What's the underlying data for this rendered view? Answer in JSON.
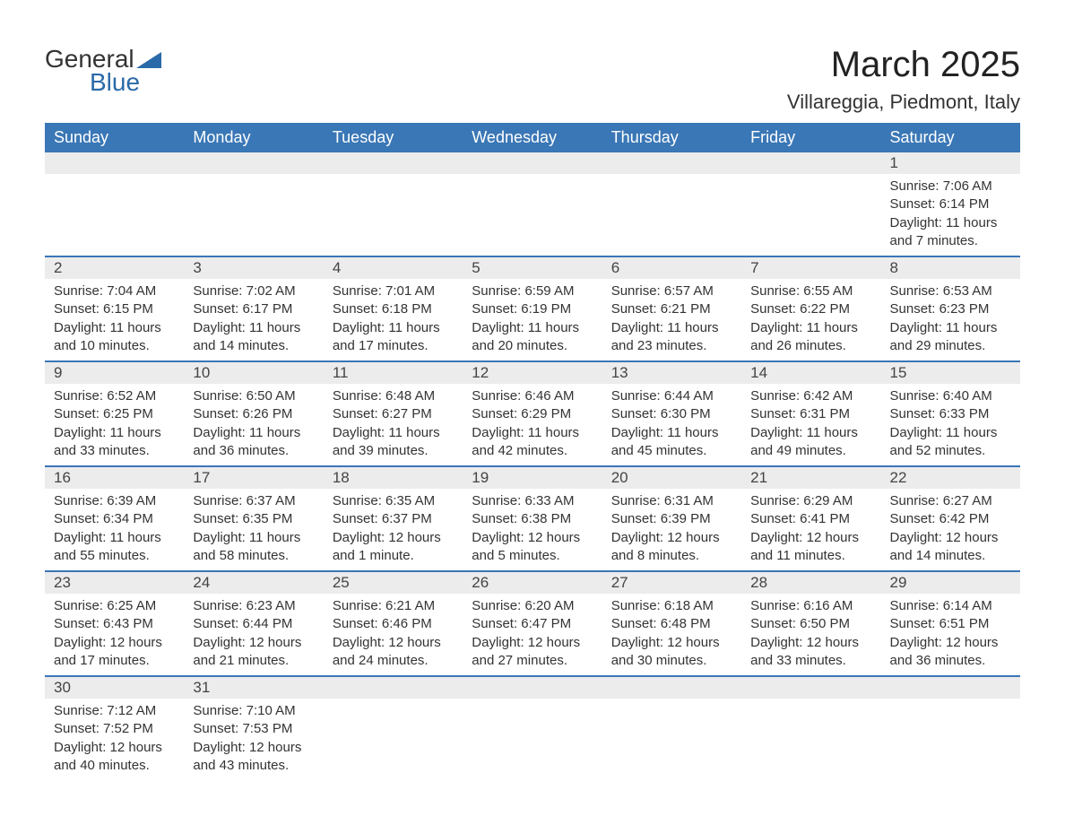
{
  "logo": {
    "text1": "General",
    "text2": "Blue",
    "brand_color": "#2b6aa8"
  },
  "header": {
    "month_title": "March 2025",
    "location": "Villareggia, Piedmont, Italy"
  },
  "calendar": {
    "type": "calendar-table",
    "header_bg": "#3a77b6",
    "header_fg": "#ffffff",
    "row_border_color": "#3a77b6",
    "daynum_bg": "#ececec",
    "text_color": "#333333",
    "font_family": "Arial",
    "day_headers": [
      "Sunday",
      "Monday",
      "Tuesday",
      "Wednesday",
      "Thursday",
      "Friday",
      "Saturday"
    ],
    "weeks": [
      [
        {
          "day": "",
          "sunrise": "",
          "sunset": "",
          "daylight": ""
        },
        {
          "day": "",
          "sunrise": "",
          "sunset": "",
          "daylight": ""
        },
        {
          "day": "",
          "sunrise": "",
          "sunset": "",
          "daylight": ""
        },
        {
          "day": "",
          "sunrise": "",
          "sunset": "",
          "daylight": ""
        },
        {
          "day": "",
          "sunrise": "",
          "sunset": "",
          "daylight": ""
        },
        {
          "day": "",
          "sunrise": "",
          "sunset": "",
          "daylight": ""
        },
        {
          "day": "1",
          "sunrise": "Sunrise: 7:06 AM",
          "sunset": "Sunset: 6:14 PM",
          "daylight": "Daylight: 11 hours and 7 minutes."
        }
      ],
      [
        {
          "day": "2",
          "sunrise": "Sunrise: 7:04 AM",
          "sunset": "Sunset: 6:15 PM",
          "daylight": "Daylight: 11 hours and 10 minutes."
        },
        {
          "day": "3",
          "sunrise": "Sunrise: 7:02 AM",
          "sunset": "Sunset: 6:17 PM",
          "daylight": "Daylight: 11 hours and 14 minutes."
        },
        {
          "day": "4",
          "sunrise": "Sunrise: 7:01 AM",
          "sunset": "Sunset: 6:18 PM",
          "daylight": "Daylight: 11 hours and 17 minutes."
        },
        {
          "day": "5",
          "sunrise": "Sunrise: 6:59 AM",
          "sunset": "Sunset: 6:19 PM",
          "daylight": "Daylight: 11 hours and 20 minutes."
        },
        {
          "day": "6",
          "sunrise": "Sunrise: 6:57 AM",
          "sunset": "Sunset: 6:21 PM",
          "daylight": "Daylight: 11 hours and 23 minutes."
        },
        {
          "day": "7",
          "sunrise": "Sunrise: 6:55 AM",
          "sunset": "Sunset: 6:22 PM",
          "daylight": "Daylight: 11 hours and 26 minutes."
        },
        {
          "day": "8",
          "sunrise": "Sunrise: 6:53 AM",
          "sunset": "Sunset: 6:23 PM",
          "daylight": "Daylight: 11 hours and 29 minutes."
        }
      ],
      [
        {
          "day": "9",
          "sunrise": "Sunrise: 6:52 AM",
          "sunset": "Sunset: 6:25 PM",
          "daylight": "Daylight: 11 hours and 33 minutes."
        },
        {
          "day": "10",
          "sunrise": "Sunrise: 6:50 AM",
          "sunset": "Sunset: 6:26 PM",
          "daylight": "Daylight: 11 hours and 36 minutes."
        },
        {
          "day": "11",
          "sunrise": "Sunrise: 6:48 AM",
          "sunset": "Sunset: 6:27 PM",
          "daylight": "Daylight: 11 hours and 39 minutes."
        },
        {
          "day": "12",
          "sunrise": "Sunrise: 6:46 AM",
          "sunset": "Sunset: 6:29 PM",
          "daylight": "Daylight: 11 hours and 42 minutes."
        },
        {
          "day": "13",
          "sunrise": "Sunrise: 6:44 AM",
          "sunset": "Sunset: 6:30 PM",
          "daylight": "Daylight: 11 hours and 45 minutes."
        },
        {
          "day": "14",
          "sunrise": "Sunrise: 6:42 AM",
          "sunset": "Sunset: 6:31 PM",
          "daylight": "Daylight: 11 hours and 49 minutes."
        },
        {
          "day": "15",
          "sunrise": "Sunrise: 6:40 AM",
          "sunset": "Sunset: 6:33 PM",
          "daylight": "Daylight: 11 hours and 52 minutes."
        }
      ],
      [
        {
          "day": "16",
          "sunrise": "Sunrise: 6:39 AM",
          "sunset": "Sunset: 6:34 PM",
          "daylight": "Daylight: 11 hours and 55 minutes."
        },
        {
          "day": "17",
          "sunrise": "Sunrise: 6:37 AM",
          "sunset": "Sunset: 6:35 PM",
          "daylight": "Daylight: 11 hours and 58 minutes."
        },
        {
          "day": "18",
          "sunrise": "Sunrise: 6:35 AM",
          "sunset": "Sunset: 6:37 PM",
          "daylight": "Daylight: 12 hours and 1 minute."
        },
        {
          "day": "19",
          "sunrise": "Sunrise: 6:33 AM",
          "sunset": "Sunset: 6:38 PM",
          "daylight": "Daylight: 12 hours and 5 minutes."
        },
        {
          "day": "20",
          "sunrise": "Sunrise: 6:31 AM",
          "sunset": "Sunset: 6:39 PM",
          "daylight": "Daylight: 12 hours and 8 minutes."
        },
        {
          "day": "21",
          "sunrise": "Sunrise: 6:29 AM",
          "sunset": "Sunset: 6:41 PM",
          "daylight": "Daylight: 12 hours and 11 minutes."
        },
        {
          "day": "22",
          "sunrise": "Sunrise: 6:27 AM",
          "sunset": "Sunset: 6:42 PM",
          "daylight": "Daylight: 12 hours and 14 minutes."
        }
      ],
      [
        {
          "day": "23",
          "sunrise": "Sunrise: 6:25 AM",
          "sunset": "Sunset: 6:43 PM",
          "daylight": "Daylight: 12 hours and 17 minutes."
        },
        {
          "day": "24",
          "sunrise": "Sunrise: 6:23 AM",
          "sunset": "Sunset: 6:44 PM",
          "daylight": "Daylight: 12 hours and 21 minutes."
        },
        {
          "day": "25",
          "sunrise": "Sunrise: 6:21 AM",
          "sunset": "Sunset: 6:46 PM",
          "daylight": "Daylight: 12 hours and 24 minutes."
        },
        {
          "day": "26",
          "sunrise": "Sunrise: 6:20 AM",
          "sunset": "Sunset: 6:47 PM",
          "daylight": "Daylight: 12 hours and 27 minutes."
        },
        {
          "day": "27",
          "sunrise": "Sunrise: 6:18 AM",
          "sunset": "Sunset: 6:48 PM",
          "daylight": "Daylight: 12 hours and 30 minutes."
        },
        {
          "day": "28",
          "sunrise": "Sunrise: 6:16 AM",
          "sunset": "Sunset: 6:50 PM",
          "daylight": "Daylight: 12 hours and 33 minutes."
        },
        {
          "day": "29",
          "sunrise": "Sunrise: 6:14 AM",
          "sunset": "Sunset: 6:51 PM",
          "daylight": "Daylight: 12 hours and 36 minutes."
        }
      ],
      [
        {
          "day": "30",
          "sunrise": "Sunrise: 7:12 AM",
          "sunset": "Sunset: 7:52 PM",
          "daylight": "Daylight: 12 hours and 40 minutes."
        },
        {
          "day": "31",
          "sunrise": "Sunrise: 7:10 AM",
          "sunset": "Sunset: 7:53 PM",
          "daylight": "Daylight: 12 hours and 43 minutes."
        },
        {
          "day": "",
          "sunrise": "",
          "sunset": "",
          "daylight": ""
        },
        {
          "day": "",
          "sunrise": "",
          "sunset": "",
          "daylight": ""
        },
        {
          "day": "",
          "sunrise": "",
          "sunset": "",
          "daylight": ""
        },
        {
          "day": "",
          "sunrise": "",
          "sunset": "",
          "daylight": ""
        },
        {
          "day": "",
          "sunrise": "",
          "sunset": "",
          "daylight": ""
        }
      ]
    ]
  }
}
